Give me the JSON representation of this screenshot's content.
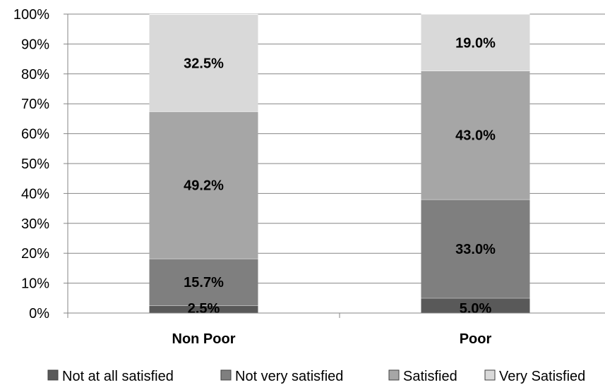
{
  "chart_data": {
    "type": "bar",
    "stacked": true,
    "categories": [
      "Non Poor",
      "Poor"
    ],
    "series": [
      {
        "name": "Not at all satisfied",
        "values": [
          2.5,
          5.0
        ],
        "labels": [
          "2.5%",
          "5.0%"
        ],
        "color": "#595959"
      },
      {
        "name": "Not very satisfied",
        "values": [
          15.7,
          33.0
        ],
        "labels": [
          "15.7%",
          "33.0%"
        ],
        "color": "#7f7f7f"
      },
      {
        "name": "Satisfied",
        "values": [
          49.2,
          43.0
        ],
        "labels": [
          "49.2%",
          "43.0%"
        ],
        "color": "#a6a6a6"
      },
      {
        "name": "Very Satisfied",
        "values": [
          32.5,
          19.0
        ],
        "labels": [
          "32.5%",
          "19.0%"
        ],
        "color": "#d9d9d9"
      }
    ],
    "ylim": [
      0,
      100
    ],
    "yticks": [
      "0%",
      "10%",
      "20%",
      "30%",
      "40%",
      "50%",
      "60%",
      "70%",
      "80%",
      "90%",
      "100%"
    ],
    "grid": true,
    "legend": "bottom"
  }
}
